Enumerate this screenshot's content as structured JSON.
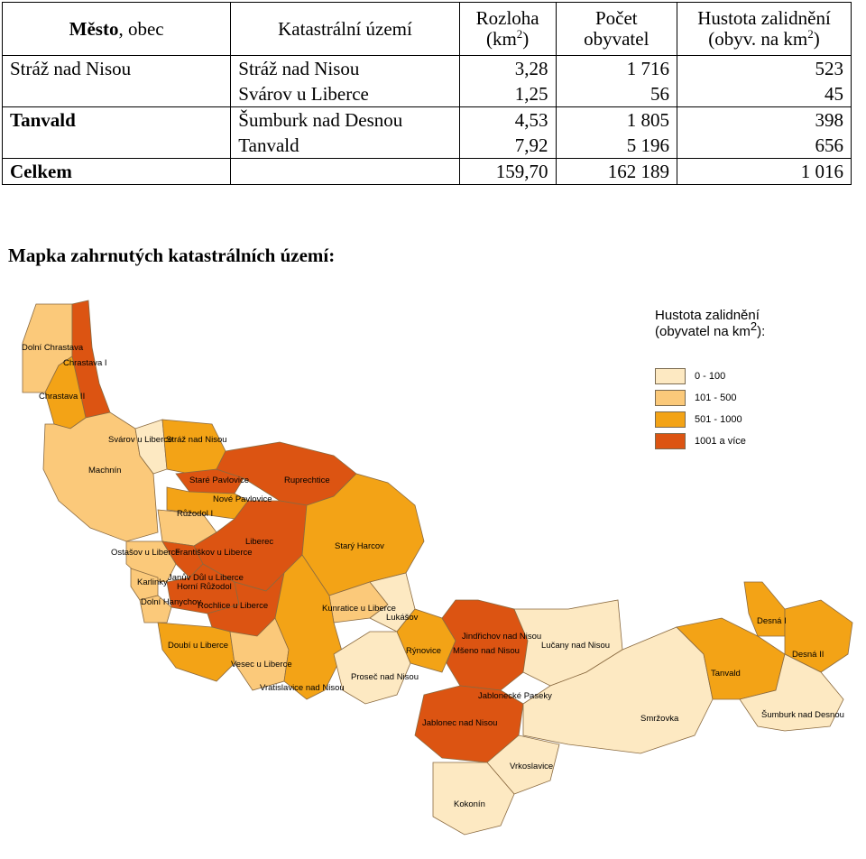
{
  "table": {
    "headers": {
      "city_bold": "Město",
      "city_rest": ", obec",
      "area": "Katastrální území",
      "rozloha_line1": "Rozloha",
      "rozloha_line2a": "(km",
      "rozloha_sup": "2",
      "rozloha_line2b": ")",
      "pocet_line1": "Počet",
      "pocet_line2": "obyvatel",
      "hustota_line1": "Hustota zalidnění",
      "hustota_line2a": "(obyv. na km",
      "hustota_sup": "2",
      "hustota_line2b": ")"
    },
    "rows": [
      {
        "city": "Stráž nad Nisou",
        "area": "Stráž nad Nisou",
        "rozloha": "3,28",
        "pocet": "1 716",
        "hustota": "523"
      },
      {
        "city": "",
        "area": "Svárov u Liberce",
        "rozloha": "1,25",
        "pocet": "56",
        "hustota": "45"
      },
      {
        "city": "Tanvald",
        "area": "Šumburk nad Desnou",
        "rozloha": "4,53",
        "pocet": "1 805",
        "hustota": "398"
      },
      {
        "city": "",
        "area": "Tanvald",
        "rozloha": "7,92",
        "pocet": "5 196",
        "hustota": "656"
      },
      {
        "city": "Celkem",
        "area": "",
        "rozloha": "159,70",
        "pocet": "162 189",
        "hustota": "1 016"
      }
    ]
  },
  "map_heading": "Mapka zahrnutých katastrálních území:",
  "map": {
    "legend": {
      "title_line1": "Hustota zalidnění",
      "title_line2a": "(obyvatel na km",
      "title_sup": "2",
      "title_line2b": "):",
      "items": [
        {
          "label": "0 - 100",
          "color": "#fde9c2"
        },
        {
          "label": "101 - 500",
          "color": "#fbc97a"
        },
        {
          "label": "501 - 1000",
          "color": "#f3a316"
        },
        {
          "label": "1001 a více",
          "color": "#dc5412"
        }
      ]
    },
    "labels": {
      "dolni_chrastava": "Dolní Chrastava",
      "chrastava_1": "Chrastava I",
      "chrastava_2": "Chrastava II",
      "svarov": "Svárov u Liberce",
      "straz": "Stráž nad Nisou",
      "machnin": "Machnín",
      "stare_pavlovice": "Staré Pavlovice",
      "ruprechtice": "Ruprechtice",
      "nove_pavlovice": "Nové Pavlovice",
      "ruzodol": "Růžodol I",
      "liberec": "Liberec",
      "stary_harcov": "Starý Harcov",
      "ostasov": "Ostašov u Liberce",
      "frantiskov": "Františkov u Liberce",
      "karlinky": "Karlinky",
      "januv_dul": "Janův Důl u Liberce",
      "horni_ruzodol": "Horní Růžodol",
      "dolni_hanychov": "Dolní Hanychov",
      "rochlice": "Rochlice u Liberce",
      "kunratice": "Kunratice u Liberce",
      "lukasov": "Lukášov",
      "jindrichov": "Jindřichov nad Nisou",
      "lucany": "Lučany nad Nisou",
      "desna_1": "Desná I",
      "desna_2": "Desná II",
      "doubi": "Doubí u Liberce",
      "vesec": "Vesec u Liberce",
      "rynovice": "Rýnovice",
      "meseno": "Mšeno nad Nisou",
      "tanvald": "Tanvald",
      "vratislavice": "Vratislavice nad Nisou",
      "prosec": "Proseč nad Nisou",
      "jablonecke_paseky": "Jablonecké Paseky",
      "jablonec": "Jablonec nad Nisou",
      "smrzovka": "Smržovka",
      "sumburk": "Šumburk nad Desnou",
      "vrkoslavice": "Vrkoslavice",
      "kokonin": "Kokonín"
    }
  }
}
